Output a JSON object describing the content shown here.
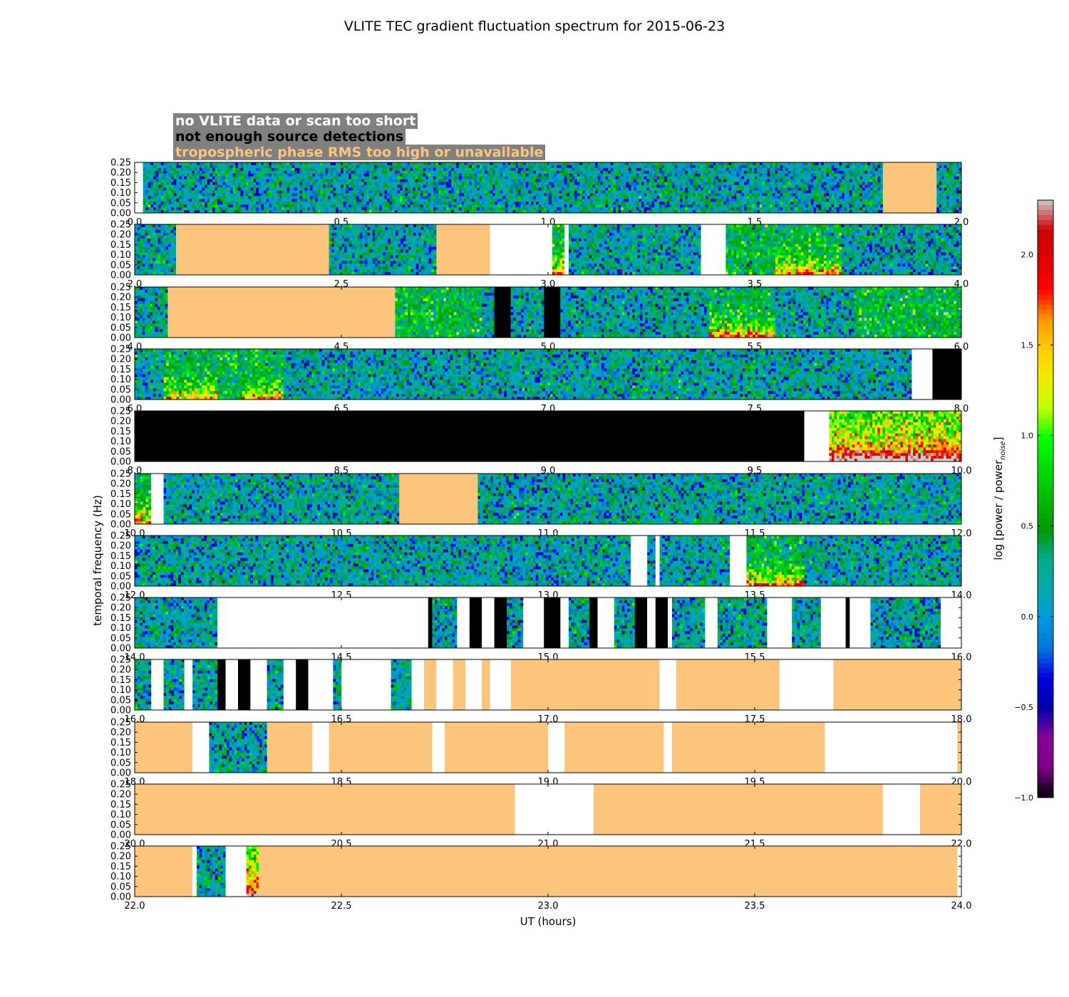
{
  "chart_data": {
    "type": "heatmap",
    "title": "VLITE TEC gradient fluctuation spectrum for 2015-06-23",
    "xlabel": "UT (hours)",
    "ylabel": "temporal frequency (Hz)",
    "colorbar_label": "log [power / power",
    "colorbar_label_sub": "noise",
    "colorbar_label_end": "]",
    "colorbar_range": [
      -1.0,
      2.3
    ],
    "colorbar_ticks": [
      "−1.0",
      "−0.5",
      "0.0",
      "0.5",
      "1.0",
      "1.5",
      "2.0"
    ],
    "colorbar_tick_values": [
      -1.0,
      -0.5,
      0.0,
      0.5,
      1.0,
      1.5,
      2.0
    ],
    "ytick_labels": [
      "0.00",
      "0.05",
      "0.10",
      "0.15",
      "0.20",
      "0.25"
    ],
    "ytick_values": [
      0.0,
      0.05,
      0.1,
      0.15,
      0.2,
      0.25
    ],
    "ylim": [
      0,
      0.25
    ],
    "legend": {
      "placement": "top-left",
      "entries": [
        {
          "label": "no VLITE data or scan too short",
          "text_color": "#ffffff",
          "key": "nodata"
        },
        {
          "label": "not enough source detections",
          "text_color": "#000000",
          "key": "nodet"
        },
        {
          "label": "tropospheric phase RMS too high or unavailable",
          "text_color": "#fdc47b",
          "key": "trop"
        }
      ]
    },
    "mask_colors": {
      "nodata": "#ffffff",
      "nodet": "#000000",
      "trop": "#fdc47b"
    },
    "panels": [
      {
        "xlim": [
          0,
          2
        ],
        "xtick_labels": [
          "0.0",
          "0.5",
          "1.0",
          "1.5",
          "2.0"
        ],
        "segments": [
          [
            0,
            0.02,
            "nodata"
          ],
          [
            0.02,
            1.81,
            "data",
            0
          ],
          [
            1.81,
            1.94,
            "trop"
          ],
          [
            1.94,
            2.0,
            "data",
            0
          ]
        ]
      },
      {
        "xlim": [
          2,
          4
        ],
        "xtick_labels": [
          "2.0",
          "2.5",
          "3.0",
          "3.5",
          "4.0"
        ],
        "segments": [
          [
            2.0,
            2.1,
            "data",
            0
          ],
          [
            2.1,
            2.47,
            "trop"
          ],
          [
            2.47,
            2.73,
            "data",
            0
          ],
          [
            2.73,
            2.86,
            "trop"
          ],
          [
            2.86,
            3.01,
            "nodata"
          ],
          [
            3.01,
            3.04,
            "data",
            2
          ],
          [
            3.04,
            3.05,
            "nodata"
          ],
          [
            3.05,
            3.37,
            "data",
            0
          ],
          [
            3.37,
            3.43,
            "nodata"
          ],
          [
            3.43,
            3.55,
            "data",
            1
          ],
          [
            3.55,
            3.71,
            "data",
            2
          ],
          [
            3.71,
            4.0,
            "data",
            0
          ]
        ]
      },
      {
        "xlim": [
          4,
          6
        ],
        "xtick_labels": [
          "4.0",
          "4.5",
          "5.0",
          "5.5",
          "6.0"
        ],
        "segments": [
          [
            4.0,
            4.08,
            "data",
            0
          ],
          [
            4.08,
            4.63,
            "trop"
          ],
          [
            4.63,
            4.84,
            "data",
            1
          ],
          [
            4.84,
            4.87,
            "data",
            0
          ],
          [
            4.87,
            4.91,
            "nodet"
          ],
          [
            4.91,
            4.99,
            "data",
            0
          ],
          [
            4.99,
            5.03,
            "nodet"
          ],
          [
            5.03,
            5.39,
            "data",
            0
          ],
          [
            5.39,
            5.55,
            "data",
            2
          ],
          [
            5.55,
            5.74,
            "data",
            0
          ],
          [
            5.74,
            6.0,
            "data",
            1
          ]
        ]
      },
      {
        "xlim": [
          6,
          8
        ],
        "xtick_labels": [
          "6.0",
          "6.5",
          "7.0",
          "7.5",
          "8.0"
        ],
        "segments": [
          [
            6.0,
            6.07,
            "data",
            0
          ],
          [
            6.07,
            6.2,
            "data",
            2
          ],
          [
            6.2,
            6.26,
            "data",
            1
          ],
          [
            6.26,
            6.36,
            "data",
            2
          ],
          [
            6.36,
            7.88,
            "data",
            0
          ],
          [
            7.88,
            7.93,
            "nodata"
          ],
          [
            7.93,
            8.0,
            "nodet"
          ]
        ]
      },
      {
        "xlim": [
          8,
          10
        ],
        "xtick_labels": [
          "8.0",
          "8.5",
          "9.0",
          "9.5",
          "10.0"
        ],
        "segments": [
          [
            8.0,
            9.62,
            "nodet"
          ],
          [
            9.62,
            9.68,
            "nodata"
          ],
          [
            9.68,
            10.0,
            "data",
            3
          ]
        ]
      },
      {
        "xlim": [
          10,
          12
        ],
        "xtick_labels": [
          "10.0",
          "10.5",
          "11.0",
          "11.5",
          "12.0"
        ],
        "segments": [
          [
            10.0,
            10.04,
            "data",
            2
          ],
          [
            10.04,
            10.07,
            "nodata"
          ],
          [
            10.07,
            10.64,
            "data",
            0
          ],
          [
            10.64,
            10.83,
            "trop"
          ],
          [
            10.83,
            12.0,
            "data",
            0
          ]
        ]
      },
      {
        "xlim": [
          12,
          14
        ],
        "xtick_labels": [
          "12.0",
          "12.5",
          "13.0",
          "13.5",
          "14.0"
        ],
        "segments": [
          [
            12.0,
            13.2,
            "data",
            0
          ],
          [
            13.2,
            13.24,
            "nodata"
          ],
          [
            13.24,
            13.26,
            "data",
            0
          ],
          [
            13.26,
            13.27,
            "nodata"
          ],
          [
            13.27,
            13.44,
            "data",
            0
          ],
          [
            13.44,
            13.48,
            "nodata"
          ],
          [
            13.48,
            13.62,
            "data",
            2
          ],
          [
            13.62,
            14.0,
            "data",
            0
          ]
        ]
      },
      {
        "xlim": [
          14,
          16
        ],
        "xtick_labels": [
          "14.0",
          "14.5",
          "15.0",
          "15.5",
          "16.0"
        ],
        "segments": [
          [
            14.0,
            14.2,
            "data",
            0
          ],
          [
            14.2,
            14.71,
            "nodata"
          ],
          [
            14.71,
            14.72,
            "nodet"
          ],
          [
            14.72,
            14.78,
            "data",
            0
          ],
          [
            14.78,
            14.81,
            "nodata"
          ],
          [
            14.81,
            14.84,
            "nodet"
          ],
          [
            14.84,
            14.87,
            "nodata"
          ],
          [
            14.87,
            14.9,
            "nodet"
          ],
          [
            14.9,
            14.94,
            "data",
            0
          ],
          [
            14.94,
            14.99,
            "nodata"
          ],
          [
            14.99,
            15.03,
            "nodet"
          ],
          [
            15.03,
            15.05,
            "nodata"
          ],
          [
            15.05,
            15.1,
            "data",
            0
          ],
          [
            15.1,
            15.12,
            "nodet"
          ],
          [
            15.12,
            15.16,
            "nodata"
          ],
          [
            15.16,
            15.21,
            "data",
            0
          ],
          [
            15.21,
            15.24,
            "nodet"
          ],
          [
            15.24,
            15.26,
            "nodata"
          ],
          [
            15.26,
            15.29,
            "nodet"
          ],
          [
            15.29,
            15.3,
            "nodata"
          ],
          [
            15.3,
            15.38,
            "data",
            0
          ],
          [
            15.38,
            15.41,
            "nodata"
          ],
          [
            15.41,
            15.53,
            "data",
            0
          ],
          [
            15.53,
            15.59,
            "nodata"
          ],
          [
            15.59,
            15.66,
            "data",
            0
          ],
          [
            15.66,
            15.72,
            "nodata"
          ],
          [
            15.72,
            15.73,
            "nodet"
          ],
          [
            15.73,
            15.78,
            "nodata"
          ],
          [
            15.78,
            15.95,
            "data",
            0
          ],
          [
            15.95,
            16.0,
            "nodata"
          ]
        ]
      },
      {
        "xlim": [
          16,
          18
        ],
        "xtick_labels": [
          "16.0",
          "16.5",
          "17.0",
          "17.5",
          "18.0"
        ],
        "segments": [
          [
            16.0,
            16.04,
            "data",
            0
          ],
          [
            16.04,
            16.07,
            "nodata"
          ],
          [
            16.07,
            16.12,
            "data",
            0
          ],
          [
            16.12,
            16.14,
            "nodata"
          ],
          [
            16.14,
            16.2,
            "data",
            0
          ],
          [
            16.2,
            16.22,
            "nodet"
          ],
          [
            16.22,
            16.25,
            "nodata"
          ],
          [
            16.25,
            16.28,
            "nodet"
          ],
          [
            16.28,
            16.32,
            "nodata"
          ],
          [
            16.32,
            16.36,
            "data",
            0
          ],
          [
            16.36,
            16.39,
            "nodata"
          ],
          [
            16.39,
            16.42,
            "nodet"
          ],
          [
            16.42,
            16.48,
            "nodata"
          ],
          [
            16.48,
            16.5,
            "data",
            0
          ],
          [
            16.5,
            16.62,
            "nodata"
          ],
          [
            16.62,
            16.67,
            "data",
            0
          ],
          [
            16.67,
            16.7,
            "nodata"
          ],
          [
            16.7,
            16.73,
            "trop"
          ],
          [
            16.73,
            16.77,
            "nodata"
          ],
          [
            16.77,
            16.8,
            "trop"
          ],
          [
            16.8,
            16.84,
            "nodata"
          ],
          [
            16.84,
            16.86,
            "trop"
          ],
          [
            16.86,
            16.91,
            "nodata"
          ],
          [
            16.91,
            17.27,
            "trop"
          ],
          [
            17.27,
            17.31,
            "nodata"
          ],
          [
            17.31,
            17.56,
            "trop"
          ],
          [
            17.56,
            17.69,
            "nodata"
          ],
          [
            17.69,
            18.0,
            "trop"
          ]
        ]
      },
      {
        "xlim": [
          18,
          20
        ],
        "xtick_labels": [
          "18.0",
          "18.5",
          "19.0",
          "19.5",
          "20.0"
        ],
        "segments": [
          [
            18.0,
            18.14,
            "trop"
          ],
          [
            18.14,
            18.18,
            "nodata"
          ],
          [
            18.18,
            18.32,
            "data",
            0
          ],
          [
            18.32,
            18.43,
            "trop"
          ],
          [
            18.43,
            18.47,
            "nodata"
          ],
          [
            18.47,
            18.72,
            "trop"
          ],
          [
            18.72,
            18.75,
            "nodata"
          ],
          [
            18.75,
            19.0,
            "trop"
          ],
          [
            19.0,
            19.04,
            "nodata"
          ],
          [
            19.04,
            19.28,
            "trop"
          ],
          [
            19.28,
            19.3,
            "nodata"
          ],
          [
            19.3,
            19.67,
            "trop"
          ],
          [
            19.67,
            19.99,
            "nodata"
          ],
          [
            19.99,
            20.0,
            "trop"
          ]
        ]
      },
      {
        "xlim": [
          20,
          22
        ],
        "xtick_labels": [
          "20.0",
          "20.5",
          "21.0",
          "21.5",
          "22.0"
        ],
        "segments": [
          [
            20.0,
            20.92,
            "trop"
          ],
          [
            20.92,
            21.11,
            "nodata"
          ],
          [
            21.11,
            21.81,
            "trop"
          ],
          [
            21.81,
            21.9,
            "nodata"
          ],
          [
            21.9,
            22.0,
            "trop"
          ]
        ]
      },
      {
        "xlim": [
          22,
          24
        ],
        "xtick_labels": [
          "22.0",
          "22.5",
          "23.0",
          "23.5",
          "24.0"
        ],
        "segments": [
          [
            22.0,
            22.14,
            "trop"
          ],
          [
            22.14,
            22.15,
            "nodata"
          ],
          [
            22.15,
            22.22,
            "data",
            0
          ],
          [
            22.22,
            22.27,
            "nodata"
          ],
          [
            22.27,
            22.3,
            "data",
            3
          ],
          [
            22.3,
            23.99,
            "trop"
          ],
          [
            23.99,
            24.0,
            "nodata"
          ]
        ]
      }
    ]
  }
}
